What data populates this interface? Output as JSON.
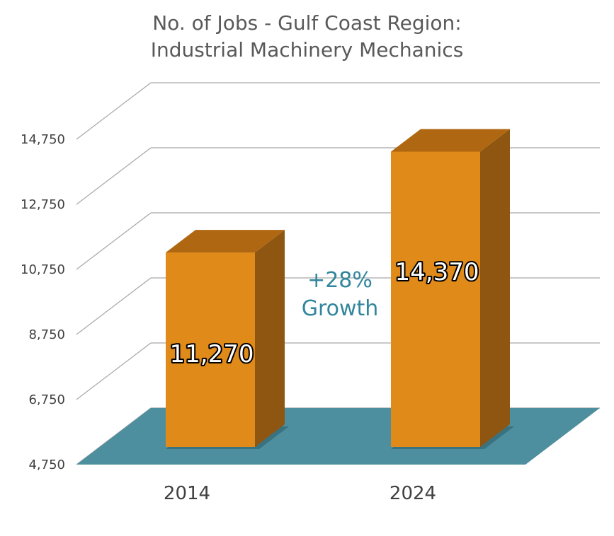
{
  "chart_data": {
    "type": "bar",
    "title": "No. of Jobs - Gulf Coast Region:",
    "subtitle": "Industrial Machinery Mechanics",
    "categories": [
      "2014",
      "2024"
    ],
    "values": [
      11270,
      14370
    ],
    "value_labels": [
      "11,270",
      "14,370"
    ],
    "ylim": [
      4750,
      14750
    ],
    "y_ticks": [
      4750,
      6750,
      8750,
      10750,
      12750,
      14750
    ],
    "y_tick_labels": [
      "4,750",
      "6,750",
      "8,750",
      "10,750",
      "12,750",
      "14,750"
    ],
    "xlabel": "",
    "ylabel": "",
    "grid": true,
    "annotation": {
      "line1": "+28%",
      "line2": "Growth",
      "color": "#31859c"
    },
    "colors": {
      "bar_front": "#e08a1a",
      "bar_top": "#b06712",
      "bar_side": "#8e5611",
      "floor": "#4d8f9e",
      "gridline": "#a6a6a6",
      "title": "#595959"
    }
  }
}
